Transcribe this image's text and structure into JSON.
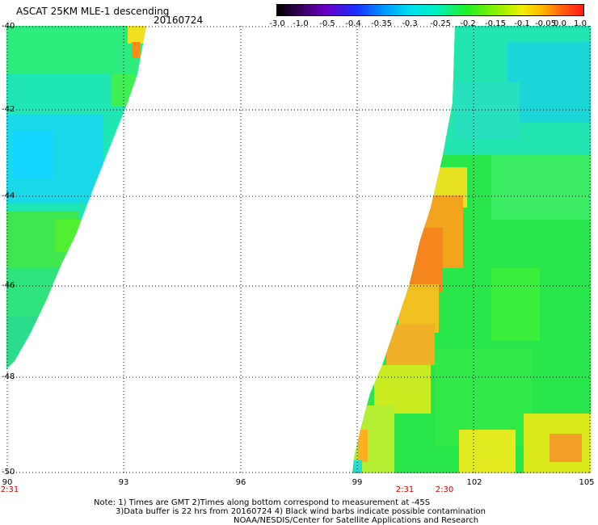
{
  "header": {
    "title": "ASCAT 25KM MLE-1 descending",
    "date": "20160724"
  },
  "colorbar": {
    "labels": [
      "-3.0",
      "-1.0",
      "-0.5",
      "-0.4",
      "-0.35",
      "-0.3",
      "-0.25",
      "-0.2",
      "-0.15",
      "-0.1",
      "-0.05",
      "0.0",
      "1.0"
    ]
  },
  "axes": {
    "lat_labels": [
      "-40",
      "-42",
      "-44",
      "-46",
      "-48",
      "-50"
    ],
    "lon_labels": [
      "90",
      "93",
      "96",
      "99",
      "102",
      "105"
    ],
    "time_labels": [
      "2:31",
      "2:31",
      "2:30"
    ]
  },
  "notes": {
    "line1": "Note: 1) Times are GMT 2)Times along bottom correspond to measurement at -45S",
    "line2": "3)Data buffer is 22 hrs from 20160724 4) Black wind barbs indicate possible contamination",
    "line3": "NOAA/NESDIS/Center for Satellite Applications and Research"
  }
}
